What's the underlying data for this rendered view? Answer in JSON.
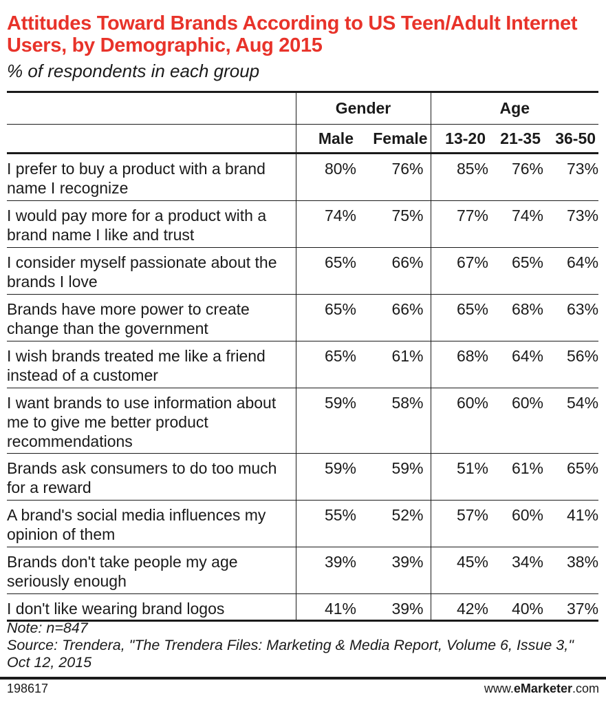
{
  "title": "Attitudes Toward Brands According to US Teen/Adult Internet Users, by Demographic, Aug 2015",
  "subtitle": "% of respondents in each group",
  "chart_data": {
    "type": "table",
    "groups": [
      {
        "name": "Gender",
        "columns": [
          "Male",
          "Female"
        ]
      },
      {
        "name": "Age",
        "columns": [
          "13-20",
          "21-35",
          "36-50"
        ]
      }
    ],
    "rows": [
      {
        "label": "I prefer to buy a product with a brand name I recognize",
        "values": [
          "80%",
          "76%",
          "85%",
          "76%",
          "73%"
        ]
      },
      {
        "label": "I would pay more for a product with a brand name I like and trust",
        "values": [
          "74%",
          "75%",
          "77%",
          "74%",
          "73%"
        ]
      },
      {
        "label": "I consider myself passionate about the brands I love",
        "values": [
          "65%",
          "66%",
          "67%",
          "65%",
          "64%"
        ]
      },
      {
        "label": "Brands have more power to create change than the government",
        "values": [
          "65%",
          "66%",
          "65%",
          "68%",
          "63%"
        ]
      },
      {
        "label": "I wish brands treated me like a friend instead of a customer",
        "values": [
          "65%",
          "61%",
          "68%",
          "64%",
          "56%"
        ]
      },
      {
        "label": "I want brands to use information about me to give me better product recommendations",
        "values": [
          "59%",
          "58%",
          "60%",
          "60%",
          "54%"
        ]
      },
      {
        "label": "Brands ask consumers to do too much for a reward",
        "values": [
          "59%",
          "59%",
          "51%",
          "61%",
          "65%"
        ]
      },
      {
        "label": "A brand's social media influences my opinion of them",
        "values": [
          "55%",
          "52%",
          "57%",
          "60%",
          "41%"
        ]
      },
      {
        "label": "Brands don't take people my age seriously enough",
        "values": [
          "39%",
          "39%",
          "45%",
          "34%",
          "38%"
        ]
      },
      {
        "label": "I don't like wearing brand logos",
        "values": [
          "41%",
          "39%",
          "42%",
          "40%",
          "37%"
        ]
      }
    ]
  },
  "note": "Note: n=847",
  "source": "Source: Trendera, \"The Trendera Files: Marketing & Media Report, Volume 6, Issue 3,\" Oct 12, 2015",
  "footer": {
    "id": "198617",
    "site_prefix": "www.",
    "site_brand": "eMarketer",
    "site_suffix": ".com"
  }
}
